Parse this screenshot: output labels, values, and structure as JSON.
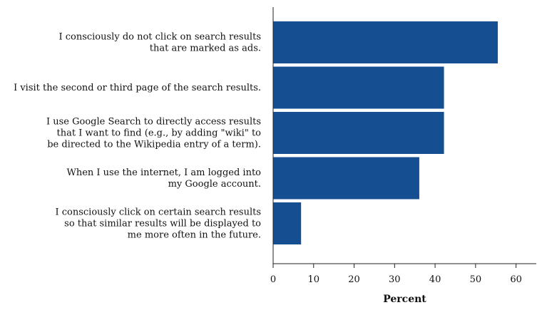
{
  "chart_data": {
    "type": "bar",
    "orientation": "horizontal",
    "categories": [
      [
        "I consciously do not click on search results",
        "that are marked as ads."
      ],
      [
        "I visit the second or third page of the search results."
      ],
      [
        "I use Google Search to directly access results",
        "that I want to find (e.g., by adding \"wiki\" to",
        "be directed to the Wikipedia entry of a term)."
      ],
      [
        "When I use the internet, I am logged into",
        "my Google account."
      ],
      [
        "I consciously click on certain search results",
        "so that similar results will be displayed to",
        "me more often in the future."
      ]
    ],
    "values": [
      55.5,
      42.2,
      42.2,
      36.1,
      6.9
    ],
    "xlabel": "Percent",
    "xlim": [
      0,
      65
    ],
    "xticks": [
      0,
      10,
      20,
      30,
      40,
      50,
      60
    ],
    "bar_color": "#154f91",
    "grid": false
  }
}
